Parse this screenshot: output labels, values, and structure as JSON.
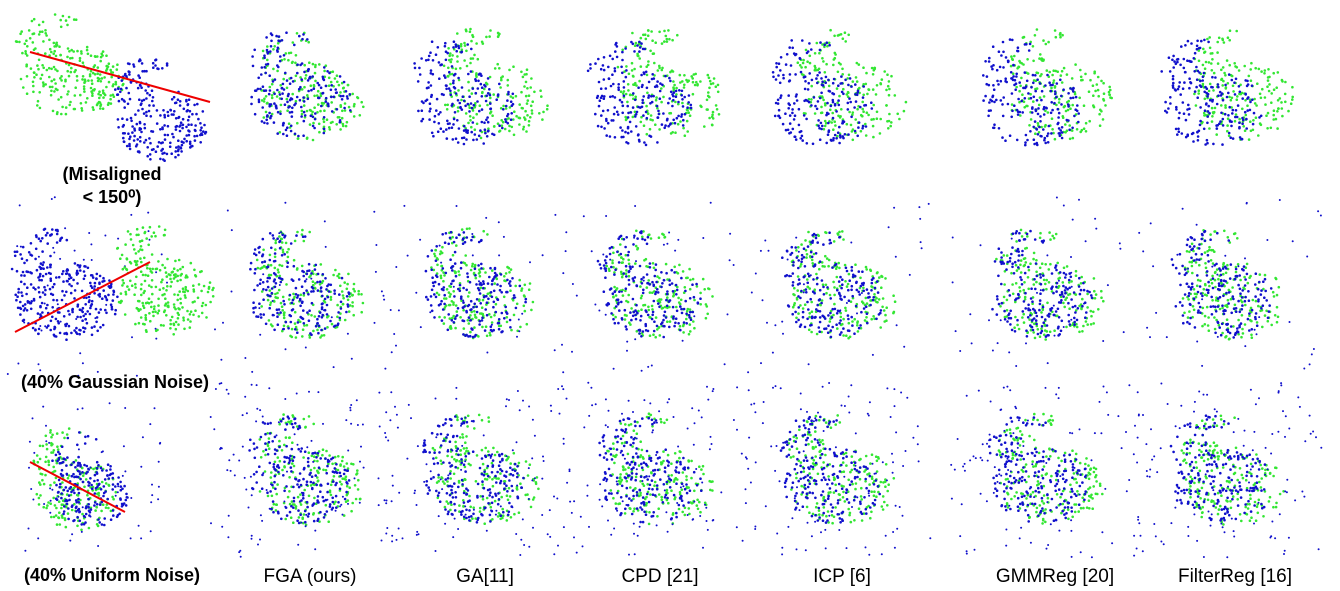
{
  "row_labels": [
    [
      "(Misaligned",
      "< 150⁰)"
    ],
    [
      "(40% Gaussian Noise)"
    ],
    [
      "(40% Uniform Noise)"
    ]
  ],
  "column_labels": [
    "FGA (ours)",
    "GA[11]",
    "CPD [21]",
    "ICP [6]",
    "GMMReg [20]",
    "FilterReg [16]"
  ]
}
